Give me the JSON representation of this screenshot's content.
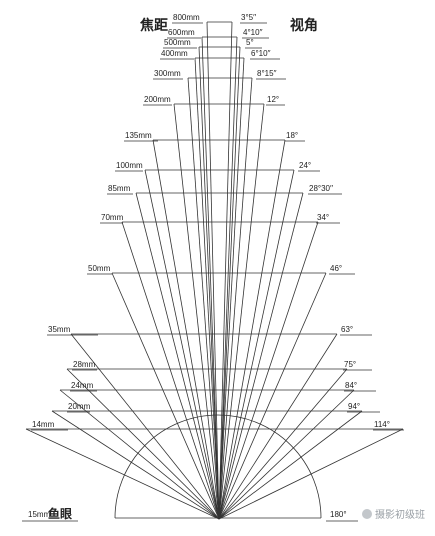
{
  "header": {
    "focal_title": "焦距",
    "angle_title": "视角"
  },
  "rows": [
    {
      "focal": "800mm",
      "angle": "3°5′′"
    },
    {
      "focal": "600mm",
      "angle": "4°10′′"
    },
    {
      "focal": "500mm",
      "angle": "5°"
    },
    {
      "focal": "400mm",
      "angle": "6°10′′"
    },
    {
      "focal": "300mm",
      "angle": "8°15′′"
    },
    {
      "focal": "200mm",
      "angle": "12°"
    },
    {
      "focal": "135mm",
      "angle": "18°"
    },
    {
      "focal": "100mm",
      "angle": "24°"
    },
    {
      "focal": "85mm",
      "angle": "28°30′′"
    },
    {
      "focal": "70mm",
      "angle": "34°"
    },
    {
      "focal": "50mm",
      "angle": "46°"
    },
    {
      "focal": "35mm",
      "angle": "63°"
    },
    {
      "focal": "28mm",
      "angle": "75°"
    },
    {
      "focal": "24mm",
      "angle": "84°"
    },
    {
      "focal": "20mm",
      "angle": "94°"
    },
    {
      "focal": "14mm",
      "angle": "114°"
    }
  ],
  "fisheye": {
    "focal": "15mm",
    "name": "鱼眼",
    "angle": "180°"
  },
  "watermark": "摄影初级班"
}
